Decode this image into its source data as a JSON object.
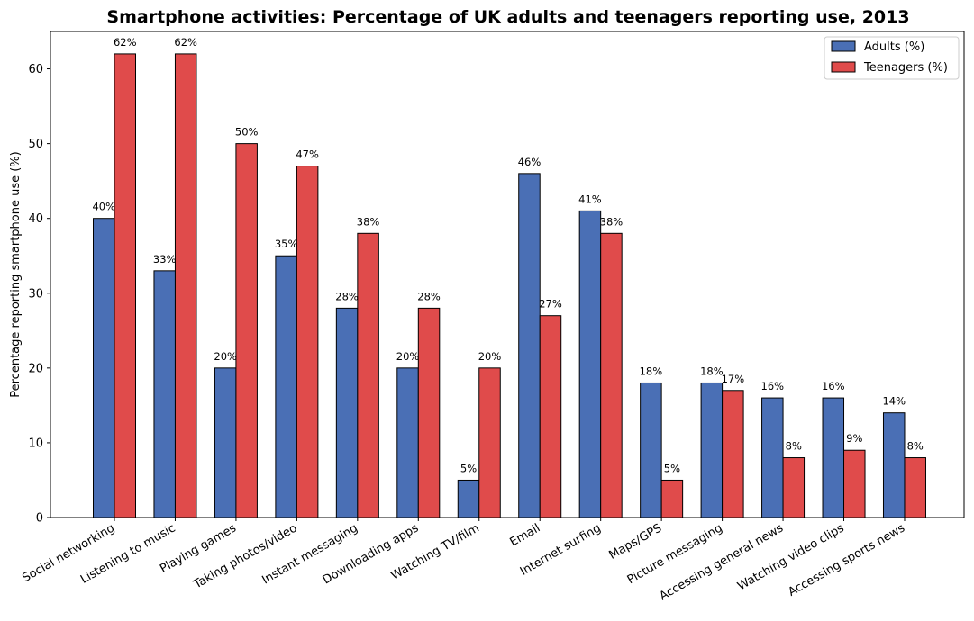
{
  "chart_data": {
    "type": "bar",
    "title": "Smartphone activities: Percentage of UK adults and teenagers reporting use, 2013",
    "xlabel": "",
    "ylabel": "Percentage reporting smartphone use (%)",
    "ylim": [
      0,
      65
    ],
    "yticks": [
      0,
      10,
      20,
      30,
      40,
      50,
      60
    ],
    "grid": false,
    "legend_position": "top-right",
    "categories": [
      "Social networking",
      "Listening to music",
      "Playing games",
      "Taking photos/video",
      "Instant messaging",
      "Downloading apps",
      "Watching TV/film",
      "Email",
      "Internet surfing",
      "Maps/GPS",
      "Picture messaging",
      "Accessing general news",
      "Watching video clips",
      "Accessing sports news"
    ],
    "series": [
      {
        "name": "Adults (%)",
        "color": "#4a6fb5",
        "values": [
          40,
          33,
          20,
          35,
          28,
          20,
          5,
          46,
          41,
          18,
          18,
          16,
          16,
          14
        ],
        "labels": [
          "40%",
          "33%",
          "20%",
          "35%",
          "28%",
          "20%",
          "5%",
          "46%",
          "41%",
          "18%",
          "18%",
          "16%",
          "16%",
          "14%"
        ]
      },
      {
        "name": "Teenagers (%)",
        "color": "#e04b4b",
        "values": [
          62,
          62,
          50,
          47,
          38,
          28,
          20,
          27,
          38,
          5,
          17,
          8,
          9,
          8
        ],
        "labels": [
          "62%",
          "62%",
          "50%",
          "47%",
          "38%",
          "28%",
          "20%",
          "27%",
          "38%",
          "5%",
          "17%",
          "8%",
          "9%",
          "8%"
        ]
      }
    ]
  }
}
